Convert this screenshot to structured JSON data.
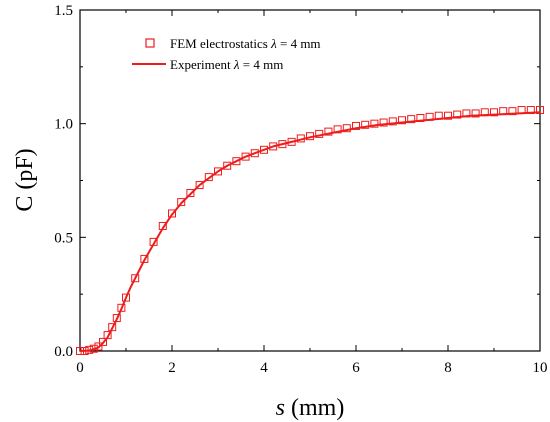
{
  "chart_data": {
    "type": "line",
    "xlabel": "s (mm)",
    "xlabel_var": "s",
    "xlabel_unit": " (mm)",
    "ylabel": "C (pF)",
    "xlim": [
      0,
      10
    ],
    "ylim": [
      0,
      1.5
    ],
    "xticks": [
      "0",
      "2",
      "4",
      "6",
      "8",
      "10"
    ],
    "yticks": [
      "0.0",
      "0.5",
      "1.0",
      "1.5"
    ],
    "grid": false,
    "legend_position": "top-left",
    "colors": {
      "series": "#ee1c1c",
      "axes": "#000000"
    },
    "series": [
      {
        "name": "FEM electrostatics λ = 4 mm",
        "marker": "open-square",
        "x": [
          0.0,
          0.1,
          0.2,
          0.3,
          0.4,
          0.5,
          0.6,
          0.7,
          0.8,
          0.9,
          1.0,
          1.2,
          1.4,
          1.6,
          1.8,
          2.0,
          2.2,
          2.4,
          2.6,
          2.8,
          3.0,
          3.2,
          3.4,
          3.6,
          3.8,
          4.0,
          4.2,
          4.4,
          4.6,
          4.8,
          5.0,
          5.2,
          5.4,
          5.6,
          5.8,
          6.0,
          6.2,
          6.4,
          6.6,
          6.8,
          7.0,
          7.2,
          7.4,
          7.6,
          7.8,
          8.0,
          8.2,
          8.4,
          8.6,
          8.8,
          9.0,
          9.2,
          9.4,
          9.6,
          9.8,
          10.0
        ],
        "y": [
          0.0,
          0.0,
          0.005,
          0.01,
          0.02,
          0.04,
          0.07,
          0.105,
          0.145,
          0.19,
          0.235,
          0.32,
          0.405,
          0.48,
          0.55,
          0.605,
          0.655,
          0.695,
          0.73,
          0.765,
          0.79,
          0.815,
          0.835,
          0.855,
          0.87,
          0.885,
          0.9,
          0.91,
          0.92,
          0.935,
          0.945,
          0.955,
          0.965,
          0.975,
          0.98,
          0.99,
          0.995,
          1.0,
          1.005,
          1.01,
          1.015,
          1.02,
          1.025,
          1.03,
          1.035,
          1.035,
          1.04,
          1.045,
          1.045,
          1.05,
          1.05,
          1.055,
          1.055,
          1.06,
          1.06,
          1.06
        ]
      },
      {
        "name": "Experiment λ = 4 mm",
        "marker": "line",
        "x": [
          0.0,
          0.2,
          0.4,
          0.5,
          0.6,
          0.7,
          0.8,
          0.9,
          1.0,
          1.1,
          1.2,
          1.4,
          1.6,
          1.8,
          2.0,
          2.2,
          2.4,
          2.6,
          2.8,
          3.0,
          3.2,
          3.4,
          3.6,
          3.8,
          4.0,
          4.2,
          4.4,
          4.6,
          4.8,
          5.0,
          5.5,
          6.0,
          6.5,
          7.0,
          7.5,
          8.0,
          8.5,
          9.0,
          9.5,
          10.0
        ],
        "y": [
          0.0,
          0.002,
          0.015,
          0.035,
          0.06,
          0.1,
          0.14,
          0.185,
          0.235,
          0.28,
          0.32,
          0.4,
          0.47,
          0.54,
          0.6,
          0.65,
          0.69,
          0.73,
          0.76,
          0.79,
          0.815,
          0.835,
          0.855,
          0.87,
          0.885,
          0.9,
          0.91,
          0.92,
          0.93,
          0.94,
          0.96,
          0.98,
          0.995,
          1.005,
          1.015,
          1.025,
          1.035,
          1.04,
          1.045,
          1.05
        ]
      }
    ],
    "legend": [
      {
        "prefix": "FEM electrostatics ",
        "lambda": "λ",
        "suffix": " = 4 mm"
      },
      {
        "prefix": "Experiment ",
        "lambda": "λ",
        "suffix": " = 4 mm"
      }
    ]
  }
}
